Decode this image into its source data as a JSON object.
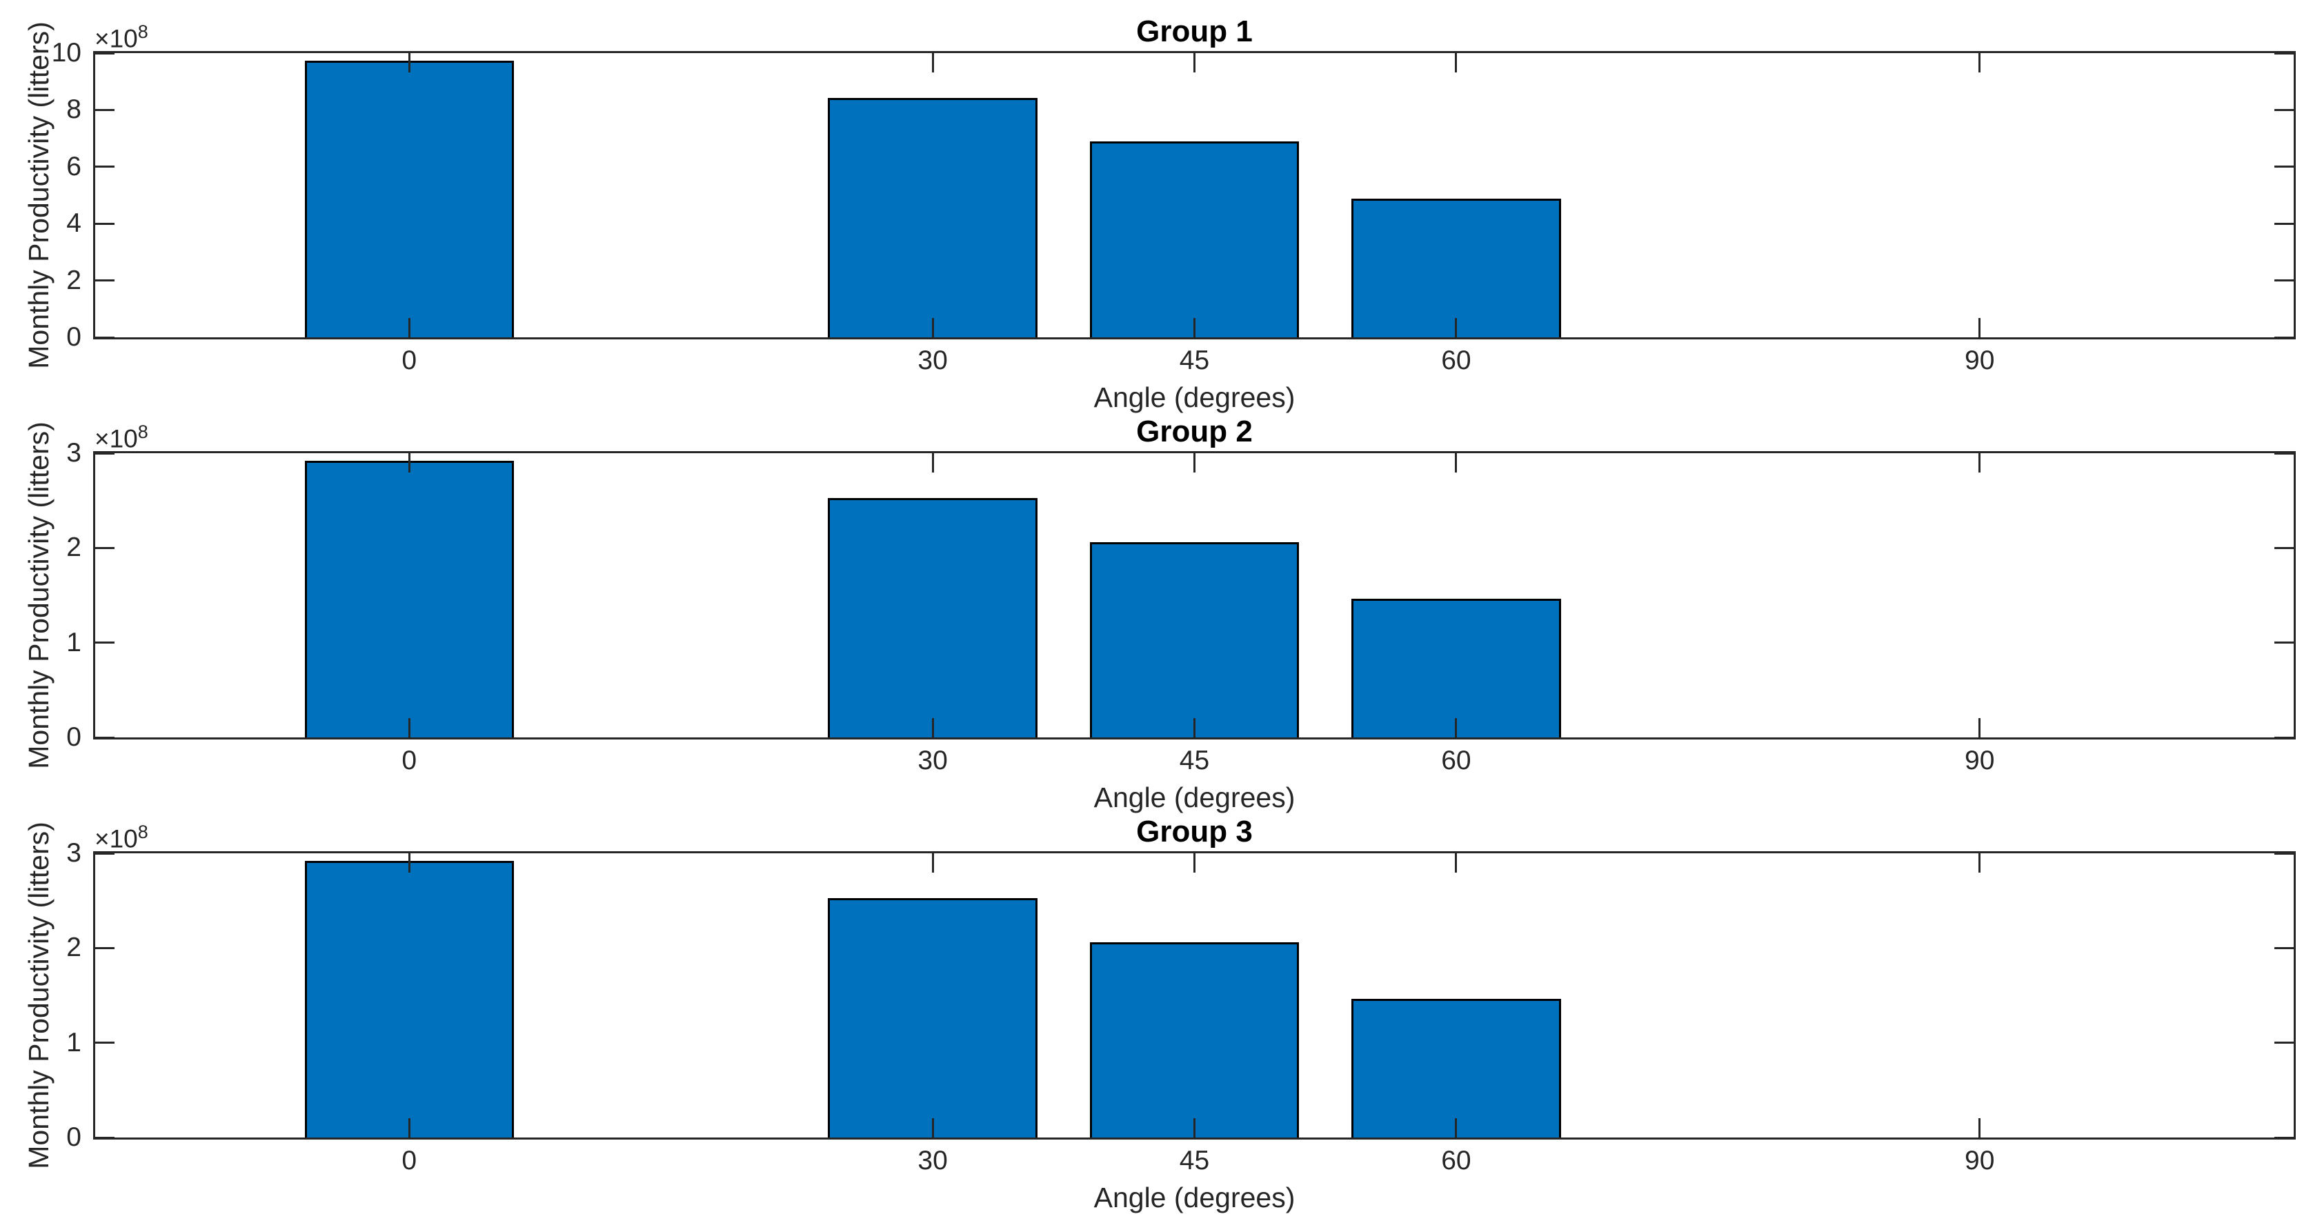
{
  "figure": {
    "background": "#ffffff",
    "bar_color": "#0072BD",
    "bar_edge_color": "#000000",
    "axis_color": "#262626",
    "tick_label_color": "#262626",
    "title_color": "#000000",
    "y_exponent_base": "×10",
    "y_exponent_power": "8"
  },
  "chart_data": [
    {
      "type": "bar",
      "title": "Group 1",
      "xlabel": "Angle (degrees)",
      "ylabel": "Monthly Productivity (litters)",
      "categories": [
        0,
        30,
        45,
        60,
        90
      ],
      "values": [
        974000000,
        843000000,
        689000000,
        487000000,
        0
      ],
      "bar_width_degrees": 12,
      "xlim": [
        -18,
        108
      ],
      "ylim": [
        0,
        1000000000
      ],
      "x_tick_labels": [
        "0",
        "30",
        "45",
        "60",
        "90"
      ],
      "y_tick_labels": [
        "0",
        "2",
        "4",
        "6",
        "8",
        "10"
      ],
      "y_tick_values": [
        0,
        200000000,
        400000000,
        600000000,
        800000000,
        1000000000
      ],
      "y_axis_exponent": "×10^8",
      "grid": false,
      "legend": null
    },
    {
      "type": "bar",
      "title": "Group 2",
      "xlabel": "Angle (degrees)",
      "ylabel": "Monthly Productivity (litters)",
      "categories": [
        0,
        30,
        45,
        60,
        90
      ],
      "values": [
        292000000,
        253000000,
        206000000,
        146000000,
        0
      ],
      "bar_width_degrees": 12,
      "xlim": [
        -18,
        108
      ],
      "ylim": [
        0,
        300000000
      ],
      "x_tick_labels": [
        "0",
        "30",
        "45",
        "60",
        "90"
      ],
      "y_tick_labels": [
        "0",
        "1",
        "2",
        "3"
      ],
      "y_tick_values": [
        0,
        100000000,
        200000000,
        300000000
      ],
      "y_axis_exponent": "×10^8",
      "grid": false,
      "legend": null
    },
    {
      "type": "bar",
      "title": "Group 3",
      "xlabel": "Angle (degrees)",
      "ylabel": "Monthly Productivity (litters)",
      "categories": [
        0,
        30,
        45,
        60,
        90
      ],
      "values": [
        292000000,
        253000000,
        206000000,
        146000000,
        0
      ],
      "bar_width_degrees": 12,
      "xlim": [
        -18,
        108
      ],
      "ylim": [
        0,
        300000000
      ],
      "x_tick_labels": [
        "0",
        "30",
        "45",
        "60",
        "90"
      ],
      "y_tick_labels": [
        "0",
        "1",
        "2",
        "3"
      ],
      "y_tick_values": [
        0,
        100000000,
        200000000,
        300000000
      ],
      "y_axis_exponent": "×10^8",
      "grid": false,
      "legend": null
    }
  ]
}
